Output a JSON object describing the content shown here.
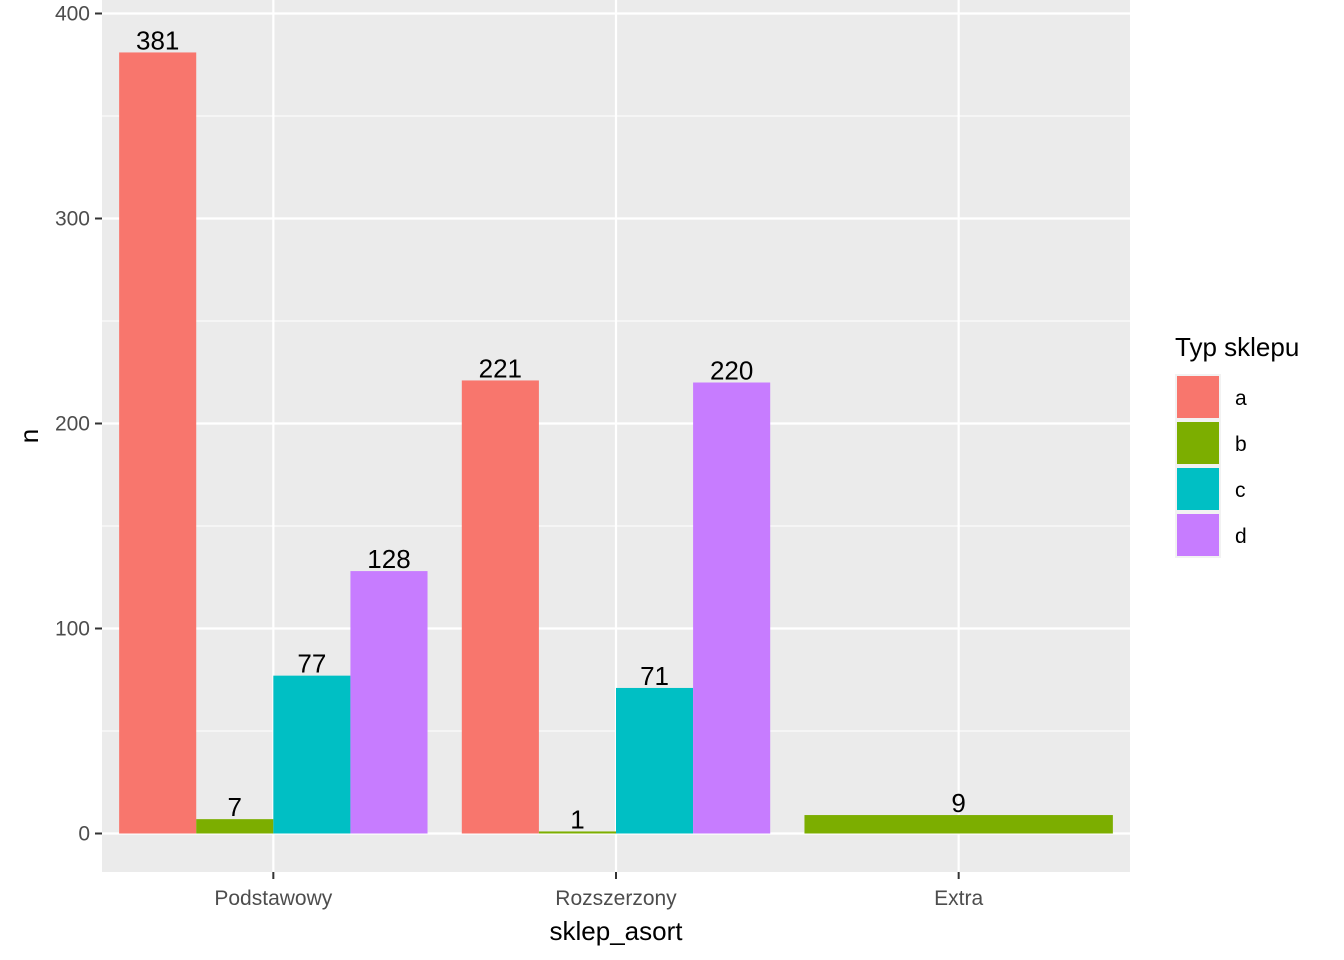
{
  "chart_data": {
    "type": "bar",
    "title": "",
    "xlabel": "sklep_asort",
    "ylabel": "n",
    "categories": [
      "Podstawowy",
      "Rozszerzony",
      "Extra"
    ],
    "series": [
      {
        "name": "a",
        "color": "#F8766D",
        "values": [
          381,
          221,
          null
        ]
      },
      {
        "name": "b",
        "color": "#7CAE00",
        "values": [
          7,
          1,
          9
        ]
      },
      {
        "name": "c",
        "color": "#00BFC4",
        "values": [
          77,
          71,
          null
        ]
      },
      {
        "name": "d",
        "color": "#C77CFF",
        "values": [
          128,
          220,
          null
        ]
      }
    ],
    "ylim": [
      -18,
      400
    ],
    "yticks": [
      0,
      100,
      200,
      300,
      400
    ],
    "ytick_labels": [
      "0",
      "100",
      "200",
      "300",
      "400"
    ],
    "legend": {
      "title": "Typ sklepu",
      "placement": "right"
    },
    "panel_background": "#EBEBEB",
    "grid": true
  }
}
